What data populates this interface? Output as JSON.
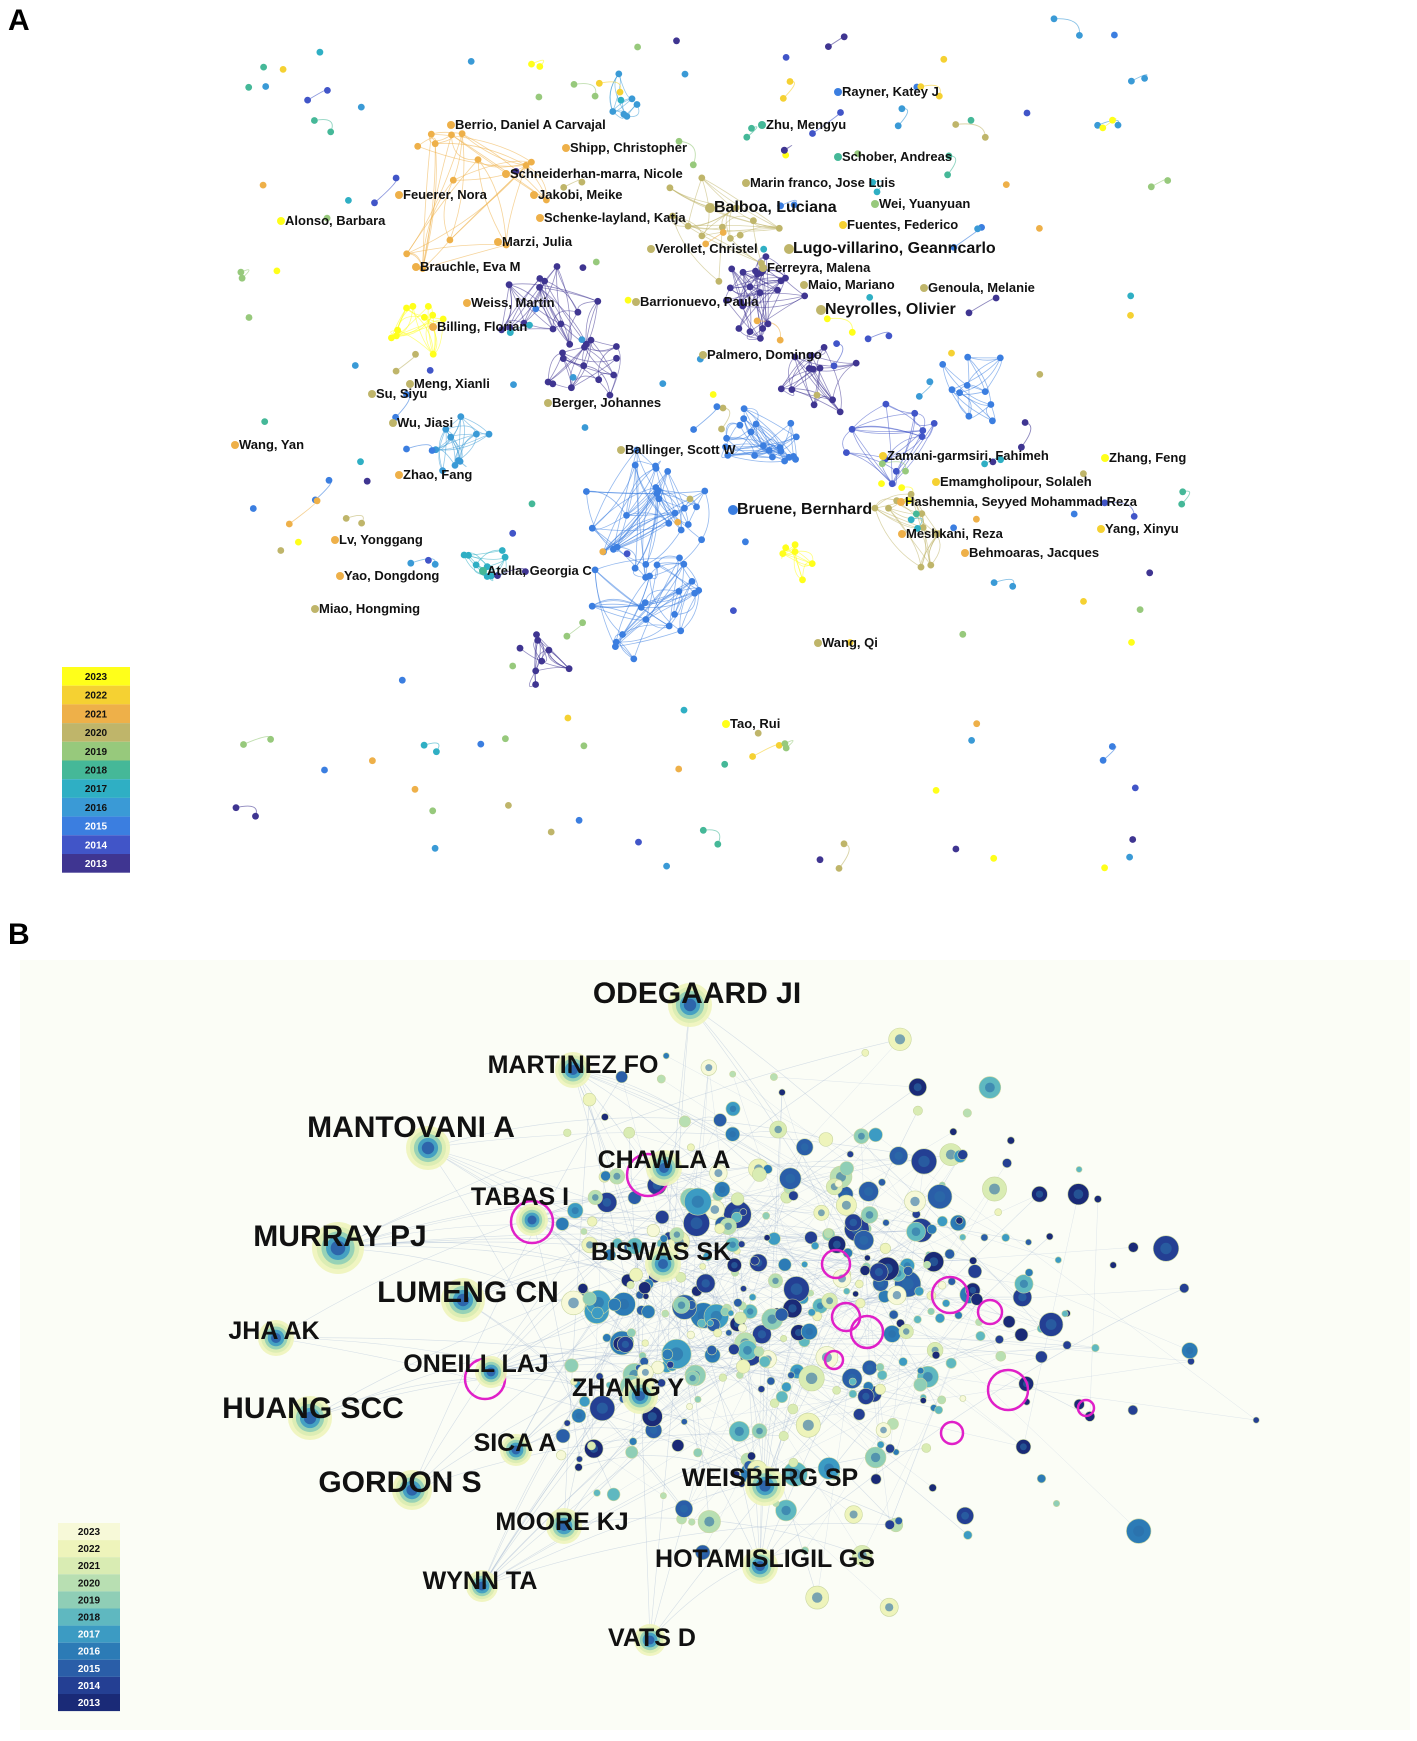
{
  "panelA": {
    "letter": "A",
    "legend_years": [
      "2023",
      "2022",
      "2021",
      "2020",
      "2019",
      "2018",
      "2017",
      "2016",
      "2015",
      "2014",
      "2013"
    ],
    "legend_colors": [
      "#ffff1a",
      "#f5d132",
      "#eeb049",
      "#bfb56a",
      "#97c97c",
      "#45b898",
      "#2fafc4",
      "#3a9ad6",
      "#3b7ee0",
      "#4155c8",
      "#3f3591"
    ],
    "labels": [
      {
        "text": "Rayner, Katey J",
        "big": false
      },
      {
        "text": "Berrio, Daniel A Carvajal",
        "big": false
      },
      {
        "text": "Zhu, Mengyu",
        "big": false
      },
      {
        "text": "Shipp, Christopher",
        "big": false
      },
      {
        "text": "Schober, Andreas",
        "big": false
      },
      {
        "text": "Schneiderhan-marra, Nicole",
        "big": false
      },
      {
        "text": "Marin franco, Jose Luis",
        "big": false
      },
      {
        "text": "Feuerer, Nora",
        "big": false
      },
      {
        "text": "Jakobi, Meike",
        "big": false
      },
      {
        "text": "Balboa, Luciana",
        "big": true
      },
      {
        "text": "Wei, Yuanyuan",
        "big": false
      },
      {
        "text": "Alonso, Barbara",
        "big": false
      },
      {
        "text": "Schenke-layland, Katja",
        "big": false
      },
      {
        "text": "Fuentes, Federico",
        "big": false
      },
      {
        "text": "Marzi, Julia",
        "big": false
      },
      {
        "text": "Verollet, Christel",
        "big": false
      },
      {
        "text": "Lugo-villarino, Geanncarlo",
        "big": true
      },
      {
        "text": "Brauchle, Eva M",
        "big": false
      },
      {
        "text": "Ferreyra, Malena",
        "big": false
      },
      {
        "text": "Maio, Mariano",
        "big": false
      },
      {
        "text": "Genoula, Melanie",
        "big": false
      },
      {
        "text": "Weiss, Martin",
        "big": false
      },
      {
        "text": "Barrionuevo, Paula",
        "big": false
      },
      {
        "text": "Neyrolles, Olivier",
        "big": true
      },
      {
        "text": "Billing, Florian",
        "big": false
      },
      {
        "text": "Palmero, Domingo",
        "big": false
      },
      {
        "text": "Meng, Xianli",
        "big": false
      },
      {
        "text": "Su, Siyu",
        "big": false
      },
      {
        "text": "Berger, Johannes",
        "big": false
      },
      {
        "text": "Wu, Jiasi",
        "big": false
      },
      {
        "text": "Wang, Yan",
        "big": false
      },
      {
        "text": "Ballinger, Scott W",
        "big": false
      },
      {
        "text": "Zamani-garmsiri, Fahimeh",
        "big": false
      },
      {
        "text": "Zhang, Feng",
        "big": false
      },
      {
        "text": "Zhao, Fang",
        "big": false
      },
      {
        "text": "Emamgholipour, Solaleh",
        "big": false
      },
      {
        "text": "Hashemnia, Seyyed Mohammad Reza",
        "big": false
      },
      {
        "text": "Bruene, Bernhard",
        "big": true
      },
      {
        "text": "Lv, Yonggang",
        "big": false
      },
      {
        "text": "Meshkani, Reza",
        "big": false
      },
      {
        "text": "Yang, Xinyu",
        "big": false
      },
      {
        "text": "Behmoaras, Jacques",
        "big": false
      },
      {
        "text": "Yao, Dongdong",
        "big": false
      },
      {
        "text": "Atella, Georgia C",
        "big": false
      },
      {
        "text": "Miao, Hongming",
        "big": false
      },
      {
        "text": "Wang, Qi",
        "big": false
      },
      {
        "text": "Tao, Rui",
        "big": false
      }
    ]
  },
  "panelB": {
    "letter": "B",
    "legend_years": [
      "2023",
      "2022",
      "2021",
      "2020",
      "2019",
      "2018",
      "2017",
      "2016",
      "2015",
      "2014",
      "2013"
    ],
    "legend_colors": [
      "#f7f9d8",
      "#eef4bb",
      "#d9ecb3",
      "#b8dfb2",
      "#8fceb6",
      "#5fb8c0",
      "#3c9bc3",
      "#2c7bb6",
      "#2a5ea8",
      "#243f93",
      "#1a2a77"
    ],
    "labels": [
      {
        "text": "ODEGAARD JI",
        "size": "xl"
      },
      {
        "text": "MARTINEZ FO",
        "size": "l"
      },
      {
        "text": "MANTOVANI A",
        "size": "xl"
      },
      {
        "text": "CHAWLA A",
        "size": "l"
      },
      {
        "text": "TABAS I",
        "size": "l"
      },
      {
        "text": "MURRAY PJ",
        "size": "xl"
      },
      {
        "text": "BISWAS SK",
        "size": "l"
      },
      {
        "text": "LUMENG CN",
        "size": "xl"
      },
      {
        "text": "JHA AK",
        "size": "l"
      },
      {
        "text": "ONEILL LAJ",
        "size": "l"
      },
      {
        "text": "ZHANG Y",
        "size": "l"
      },
      {
        "text": "HUANG SCC",
        "size": "xl"
      },
      {
        "text": "SICA A",
        "size": "l"
      },
      {
        "text": "GORDON S",
        "size": "xl"
      },
      {
        "text": "WEISBERG SP",
        "size": "l"
      },
      {
        "text": "MOORE KJ",
        "size": "l"
      },
      {
        "text": "HOTAMISLIGIL GS",
        "size": "l"
      },
      {
        "text": "WYNN TA",
        "size": "l"
      },
      {
        "text": "VATS D",
        "size": "l"
      }
    ]
  }
}
